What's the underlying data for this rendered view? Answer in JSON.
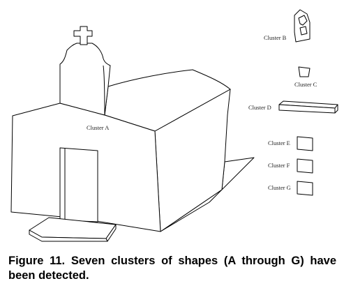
{
  "figure": {
    "labels": {
      "cluster_a": "Cluster A",
      "cluster_b": "Cluster B",
      "cluster_c": "Cluster C",
      "cluster_d": "Cluster D",
      "cluster_e": "Cluster E",
      "cluster_f": "Cluster F",
      "cluster_g": "Cluster G"
    }
  },
  "caption": "Figure 11. Seven clusters of shapes (A through G) have been detected."
}
